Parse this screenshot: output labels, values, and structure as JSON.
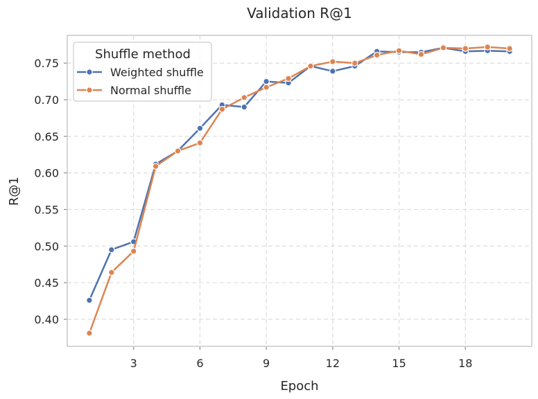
{
  "chart_data": {
    "type": "line",
    "title": "Validation R@1",
    "xlabel": "Epoch",
    "ylabel": "R@1",
    "xlim": [
      0,
      21
    ],
    "ylim": [
      0.363,
      0.788
    ],
    "xticks": [
      3,
      6,
      9,
      12,
      15,
      18
    ],
    "yticks": [
      0.4,
      0.45,
      0.5,
      0.55,
      0.6,
      0.65,
      0.7,
      0.75
    ],
    "grid": true,
    "legend": {
      "title": "Shuffle method",
      "placement": "top-left"
    },
    "x": [
      1,
      2,
      3,
      4,
      5,
      6,
      7,
      8,
      9,
      10,
      11,
      12,
      13,
      14,
      15,
      16,
      17,
      18,
      19,
      20
    ],
    "series": [
      {
        "name": "Weighted shuffle",
        "color": "#4c72b0",
        "values": [
          0.426,
          0.495,
          0.506,
          0.612,
          0.63,
          0.661,
          0.693,
          0.69,
          0.725,
          0.723,
          0.746,
          0.739,
          0.746,
          0.766,
          0.765,
          0.765,
          0.771,
          0.766,
          0.767,
          0.766
        ]
      },
      {
        "name": "Normal shuffle",
        "color": "#dd8452",
        "values": [
          0.381,
          0.464,
          0.493,
          0.609,
          0.63,
          0.641,
          0.687,
          0.703,
          0.717,
          0.729,
          0.746,
          0.752,
          0.75,
          0.761,
          0.767,
          0.762,
          0.771,
          0.77,
          0.772,
          0.77
        ]
      }
    ]
  }
}
